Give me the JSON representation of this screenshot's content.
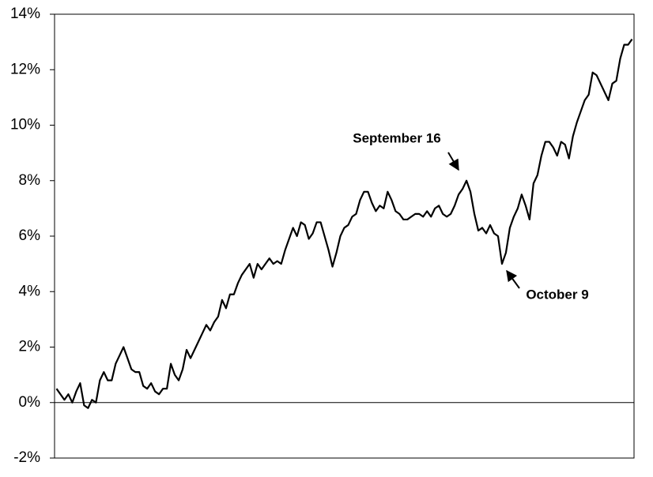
{
  "chart_data": {
    "type": "line",
    "categories": [
      null,
      null,
      null,
      null,
      null,
      null,
      null,
      null,
      null,
      null,
      null,
      null,
      null,
      null,
      null,
      null,
      null,
      null,
      null,
      null,
      null,
      null,
      null,
      null,
      null,
      null,
      null,
      null,
      null,
      null,
      null,
      null,
      null,
      null,
      null,
      null,
      null,
      null,
      null,
      null,
      null,
      null,
      null,
      null,
      null,
      null,
      null,
      null,
      null,
      null,
      null,
      null,
      null,
      null,
      null,
      null,
      null,
      null,
      null,
      null,
      null,
      null,
      null,
      null,
      null,
      null,
      null,
      null,
      null,
      null,
      null,
      null,
      null,
      null,
      null,
      null,
      null,
      null,
      null,
      null,
      null,
      null,
      null,
      null,
      null,
      null,
      null,
      null,
      null,
      null,
      null,
      null,
      null,
      null,
      null,
      null,
      null,
      null,
      null,
      null,
      null,
      null,
      null,
      null,
      null,
      null,
      null,
      null,
      null,
      null,
      null,
      null,
      null,
      null,
      null,
      null,
      null,
      null,
      null,
      null,
      null,
      null,
      null,
      null,
      null,
      null,
      null,
      null,
      null,
      null,
      null,
      null,
      null,
      null,
      null,
      null,
      null,
      null,
      null,
      null,
      null,
      null,
      null,
      null,
      null,
      null,
      null
    ],
    "series": [
      {
        "color": "#000000",
        "values": [
          0.5,
          0.3,
          0.1,
          0.3,
          0.0,
          0.4,
          0.7,
          -0.1,
          -0.2,
          0.1,
          0.0,
          0.8,
          1.1,
          0.8,
          0.8,
          1.4,
          1.7,
          2.0,
          1.6,
          1.2,
          1.1,
          1.1,
          0.6,
          0.5,
          0.7,
          0.4,
          0.3,
          0.5,
          0.5,
          1.4,
          1.0,
          0.8,
          1.2,
          1.9,
          1.6,
          1.9,
          2.2,
          2.5,
          2.8,
          2.6,
          2.9,
          3.1,
          3.7,
          3.4,
          3.9,
          3.9,
          4.3,
          4.6,
          4.8,
          5.0,
          4.5,
          5.0,
          4.8,
          5.0,
          5.2,
          5.0,
          5.1,
          5.0,
          5.5,
          5.9,
          6.3,
          6.0,
          6.5,
          6.4,
          5.9,
          6.1,
          6.5,
          6.5,
          6.0,
          5.5,
          4.9,
          5.4,
          6.0,
          6.3,
          6.4,
          6.7,
          6.8,
          7.3,
          7.6,
          7.6,
          7.2,
          6.9,
          7.1,
          7.0,
          7.6,
          7.3,
          6.9,
          6.8,
          6.6,
          6.6,
          6.7,
          6.8,
          6.8,
          6.7,
          6.9,
          6.7,
          7.0,
          7.1,
          6.8,
          6.7,
          6.8,
          7.1,
          7.5,
          7.7,
          8.0,
          7.6,
          6.8,
          6.2,
          6.3,
          6.1,
          6.4,
          6.1,
          6.0,
          5.0,
          5.4,
          6.3,
          6.7,
          7.0,
          7.5,
          7.1,
          6.6,
          7.9,
          8.2,
          8.9,
          9.4,
          9.4,
          9.2,
          8.9,
          9.4,
          9.3,
          8.8,
          9.6,
          10.1,
          10.5,
          10.9,
          11.1,
          11.9,
          11.8,
          11.5,
          11.2,
          10.9,
          11.5,
          11.6,
          12.4,
          12.9,
          12.9,
          13.1
        ]
      }
    ],
    "ylim": [
      -2,
      14
    ],
    "yticks": [
      {
        "value": -2,
        "label": "-2%"
      },
      {
        "value": 0,
        "label": "0%"
      },
      {
        "value": 2,
        "label": "2%"
      },
      {
        "value": 4,
        "label": "4%"
      },
      {
        "value": 6,
        "label": "6%"
      },
      {
        "value": 8,
        "label": "8%"
      },
      {
        "value": 10,
        "label": "10%"
      },
      {
        "value": 12,
        "label": "12%"
      },
      {
        "value": 14,
        "label": "14%"
      }
    ],
    "annotations": [
      {
        "text": "September 16"
      },
      {
        "text": "October 9"
      }
    ]
  }
}
